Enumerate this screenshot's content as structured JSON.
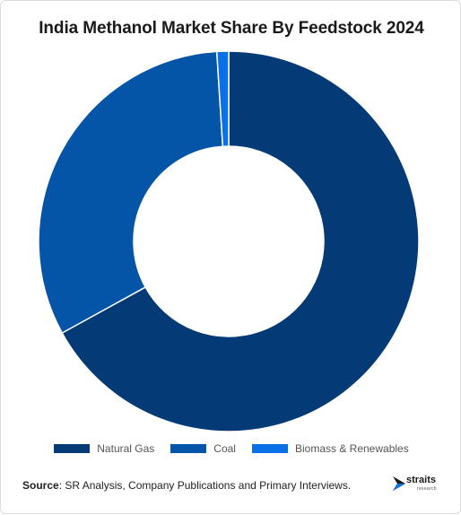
{
  "chart_data": {
    "type": "pie",
    "title": "India Methanol Market Share By Feedstock 2024",
    "donut": true,
    "categories": [
      "Natural Gas",
      "Coal",
      "Biomass & Renewables"
    ],
    "values": [
      67,
      32,
      1
    ],
    "unit": "%",
    "colors": [
      "#043a75",
      "#0454a8",
      "#0a70e8"
    ],
    "legend_position": "bottom"
  },
  "source": {
    "label": "Source",
    "text": ": SR Analysis, Company Publications and Primary Interviews."
  },
  "logo": {
    "name": "straits",
    "sub": "research"
  }
}
